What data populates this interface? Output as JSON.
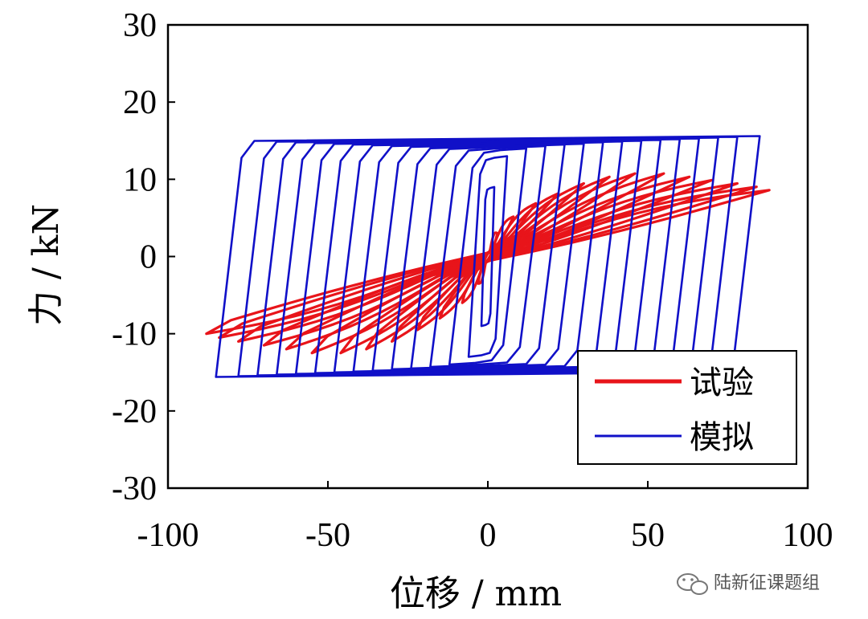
{
  "chart_data": {
    "type": "line",
    "title": "",
    "xlabel": "位移 / mm",
    "ylabel": "力 / kN",
    "xlim": [
      -100,
      100
    ],
    "ylim": [
      -30,
      30
    ],
    "xticks": [
      -100,
      -50,
      0,
      50,
      100
    ],
    "yticks": [
      -30,
      -20,
      -10,
      0,
      10,
      20,
      30
    ],
    "xtick_labels": [
      "-100",
      "-50",
      "0",
      "50",
      "100"
    ],
    "ytick_labels": [
      "-30",
      "-20",
      "-10",
      "0",
      "10",
      "20",
      "30"
    ],
    "grid": false,
    "legend_position": "bottom-right",
    "series": [
      {
        "name": "试验",
        "color": "#e8141a",
        "loops": [
          {
            "amp": 3,
            "fmax": 3.5
          },
          {
            "amp": 8,
            "fmax": 6.0
          },
          {
            "amp": 15,
            "fmax": 8.0
          },
          {
            "amp": 22,
            "fmax": 9.5
          },
          {
            "amp": 30,
            "fmax": 11.0
          },
          {
            "amp": 38,
            "fmax": 12.0
          },
          {
            "amp": 46,
            "fmax": 12.5
          },
          {
            "amp": 55,
            "fmax": 12.5
          },
          {
            "amp": 63,
            "fmax": 12.0
          },
          {
            "amp": 70,
            "fmax": 11.5
          },
          {
            "amp": 78,
            "fmax": 11.0
          },
          {
            "amp": 84,
            "fmax": 10.5
          },
          {
            "amp": 88,
            "fmax": 10.0
          }
        ]
      },
      {
        "name": "模拟",
        "color": "#1010c8",
        "loops": [
          {
            "amp": 2,
            "fmax": 9.0
          },
          {
            "amp": 6,
            "fmax": 13.0
          },
          {
            "amp": 12,
            "fmax": 14.0
          },
          {
            "amp": 18,
            "fmax": 14.3
          },
          {
            "amp": 24,
            "fmax": 14.5
          },
          {
            "amp": 30,
            "fmax": 14.6
          },
          {
            "amp": 36,
            "fmax": 14.8
          },
          {
            "amp": 42,
            "fmax": 14.9
          },
          {
            "amp": 48,
            "fmax": 15.0
          },
          {
            "amp": 54,
            "fmax": 15.1
          },
          {
            "amp": 60,
            "fmax": 15.2
          },
          {
            "amp": 66,
            "fmax": 15.3
          },
          {
            "amp": 72,
            "fmax": 15.4
          },
          {
            "amp": 78,
            "fmax": 15.5
          },
          {
            "amp": 85,
            "fmax": 15.6
          }
        ]
      }
    ]
  },
  "watermark": {
    "icon": "wechat-icon",
    "text": "陆新征课题组"
  }
}
